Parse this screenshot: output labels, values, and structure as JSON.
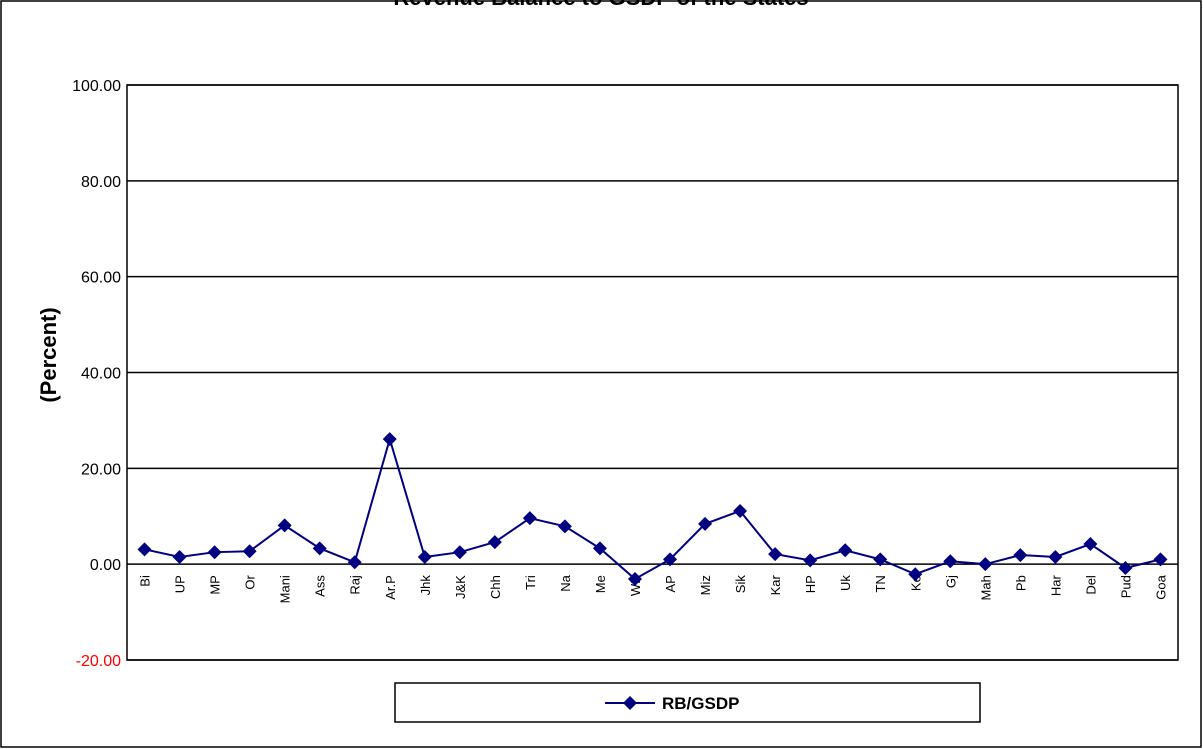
{
  "chart_data": {
    "type": "line",
    "title": "Revenue Balance to GSDP of the States",
    "y_label": "(Percent)",
    "categories": [
      "Bi",
      "UP",
      "MP",
      "Or",
      "Mani",
      "Ass",
      "Raj",
      "Ar.P",
      "Jhk",
      "J&K",
      "Chh",
      "Tri",
      "Na",
      "Me",
      "WB",
      "AP",
      "Miz",
      "Sik",
      "Kar",
      "HP",
      "Uk",
      "TN",
      "Ke",
      "Gj",
      "Mah",
      "Pb",
      "Har",
      "Del",
      "Pud",
      "Goa"
    ],
    "series": [
      {
        "name": "RB/GSDP",
        "color": "#000080",
        "values": [
          3.1,
          1.5,
          2.5,
          2.7,
          8.1,
          3.3,
          0.4,
          26.1,
          1.5,
          2.5,
          4.6,
          9.6,
          7.9,
          3.3,
          -3.1,
          1.0,
          8.4,
          11.1,
          2.1,
          0.8,
          2.9,
          1.0,
          -2.1,
          0.6,
          0.0,
          1.9,
          1.5,
          4.2,
          -0.8,
          1.0
        ]
      }
    ],
    "ylim": [
      -20,
      100
    ],
    "yticks": [
      {
        "value": -20,
        "label": "-20.00"
      },
      {
        "value": 0,
        "label": "0.00"
      },
      {
        "value": 20,
        "label": "20.00"
      },
      {
        "value": 40,
        "label": "40.00"
      },
      {
        "value": 60,
        "label": "60.00"
      },
      {
        "value": 80,
        "label": "80.00"
      },
      {
        "value": 100,
        "label": "100.00"
      }
    ],
    "negative_tick_color": "#ff0000",
    "grid": true,
    "legend": "bottom"
  }
}
